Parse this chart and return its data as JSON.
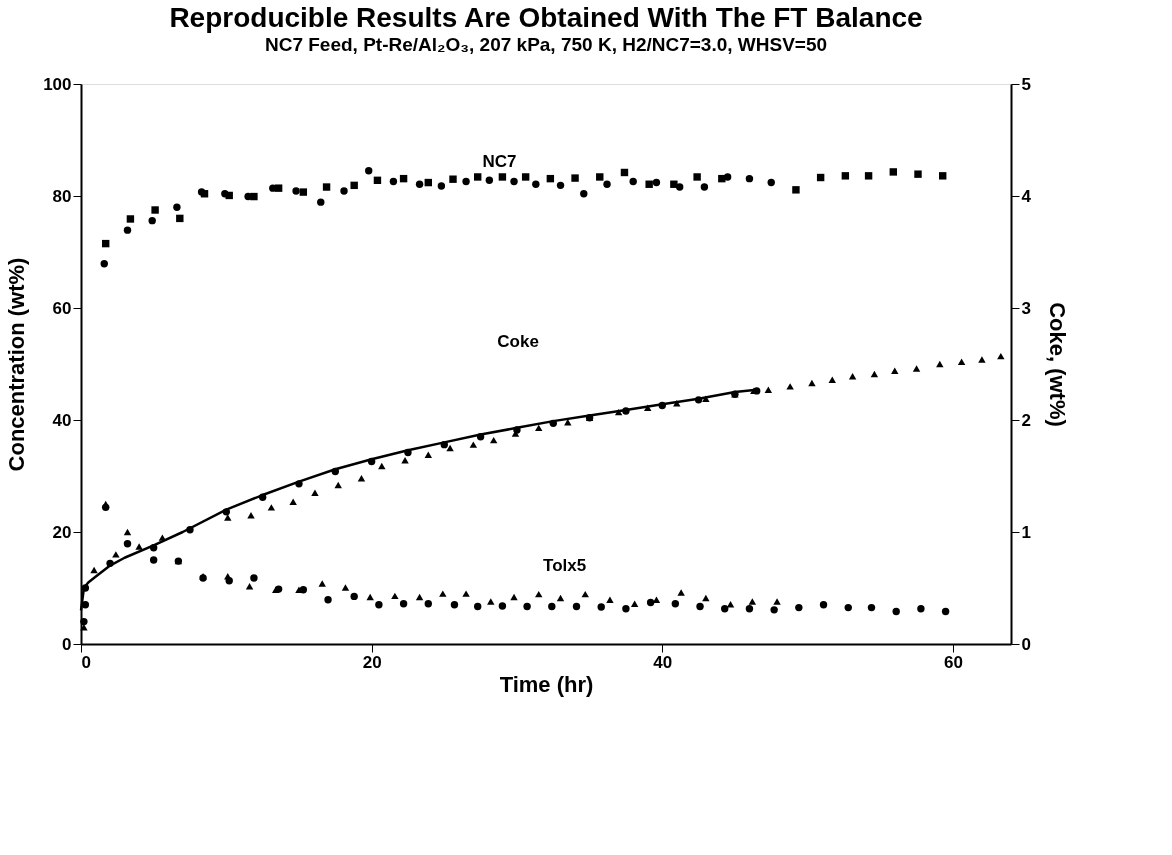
{
  "chart_data": {
    "type": "scatter",
    "title": "Reproducible Results Are Obtained With The FT Balance",
    "subtitle": "NC7 Feed, Pt-Re/Al₂O₃, 207 kPa, 750 K, H2/NC7=3.0, WHSV=50",
    "xlabel": "Time (hr)",
    "ylabel": "Concentration (wt%)",
    "y2label": "Coke, (wt%)",
    "xlim": [
      0,
      64
    ],
    "xticks": [
      0,
      20,
      40,
      60
    ],
    "ylim": [
      0,
      100
    ],
    "yticks": [
      0,
      20,
      40,
      60,
      80,
      100
    ],
    "y2lim": [
      0,
      5
    ],
    "y2ticks": [
      {
        "value": 0,
        "label": "0"
      },
      {
        "value": 1,
        "label": "1"
      },
      {
        "value": 2,
        "label": "2"
      },
      {
        "value": 3,
        "label": "3"
      },
      {
        "value": 4,
        "label": "4"
      },
      {
        "value": 5,
        "label": "5"
      }
    ],
    "grid": false,
    "annotations": [
      "NC7",
      "Coke",
      "Tolx5"
    ],
    "series": [
      {
        "marker": "square",
        "color": "#000000",
        "x": [
          1.7,
          3.4,
          5.1,
          6.8,
          8.5,
          10.2,
          11.9,
          13.6,
          15.3,
          16.9,
          18.8,
          20.4,
          22.2,
          23.9,
          25.6,
          27.3,
          29.0,
          30.6,
          32.3,
          34.0,
          35.7,
          37.4,
          39.1,
          40.8,
          42.4,
          44.1,
          49.2,
          50.9,
          52.6,
          54.2,
          55.9,
          57.6,
          59.3
        ],
        "values": [
          71.5,
          75.9,
          77.5,
          76.0,
          80.4,
          80.1,
          79.9,
          81.4,
          80.7,
          81.6,
          81.9,
          82.8,
          83.1,
          82.4,
          83.0,
          83.4,
          83.4,
          83.4,
          83.1,
          83.2,
          83.4,
          84.2,
          82.1,
          82.1,
          83.4,
          83.1,
          81.1,
          83.3,
          83.6,
          83.6,
          84.3,
          83.9,
          83.6
        ]
      },
      {
        "marker": "circle",
        "color": "#000000",
        "x": [
          1.6,
          3.2,
          4.9,
          6.6,
          8.3,
          9.9,
          11.5,
          13.2,
          14.8,
          16.5,
          18.1,
          19.8,
          21.5,
          23.3,
          24.8,
          26.5,
          28.1,
          29.8,
          31.3,
          33.0,
          34.6,
          36.2,
          38.0,
          39.6,
          41.2,
          42.9,
          44.5,
          46.0,
          47.5
        ],
        "values": [
          67.9,
          73.9,
          75.6,
          78.0,
          80.7,
          80.4,
          79.9,
          81.4,
          80.9,
          78.9,
          80.9,
          84.5,
          82.6,
          82.1,
          81.8,
          82.6,
          82.8,
          82.6,
          82.1,
          81.9,
          80.4,
          82.1,
          82.6,
          82.4,
          81.6,
          81.6,
          83.4,
          83.1,
          82.4
        ]
      },
      {
        "marker": "circle",
        "color": "#000000",
        "x": [
          0.2,
          0.3,
          1.7,
          3.2,
          5.0,
          6.7,
          8.4,
          10.2,
          11.9,
          13.6,
          15.3,
          17.0,
          18.8,
          20.5,
          22.2,
          23.9,
          25.7,
          27.3,
          29.0,
          30.7,
          32.4,
          34.1,
          35.8,
          37.5,
          39.2,
          40.9,
          42.6,
          44.3,
          46.0,
          47.7,
          49.4,
          51.1,
          52.8,
          54.4,
          56.1,
          57.8,
          59.5
        ],
        "values": [
          4.0,
          7.0,
          24.4,
          17.9,
          15.0,
          14.8,
          11.8,
          11.3,
          11.8,
          9.8,
          9.7,
          7.9,
          8.5,
          7.0,
          7.2,
          7.2,
          7.0,
          6.7,
          6.8,
          6.7,
          6.7,
          6.7,
          6.6,
          6.3,
          7.4,
          7.2,
          6.7,
          6.3,
          6.3,
          6.1,
          6.5,
          7.0,
          6.5,
          6.5,
          5.8,
          6.3,
          5.8
        ]
      },
      {
        "marker": "triangle",
        "color": "#000000",
        "x": [
          1.7,
          3.2,
          6.7,
          8.4,
          10.1,
          11.6,
          13.4,
          15.0,
          16.6,
          18.2,
          19.9,
          21.6,
          23.3,
          24.9,
          26.5,
          28.2,
          29.8,
          31.5,
          33.0,
          34.7,
          36.4,
          38.1,
          39.6,
          41.3,
          43.0,
          44.7,
          46.2,
          47.9
        ],
        "values": [
          25.0,
          20.0,
          14.8,
          12.1,
          12.1,
          10.3,
          9.7,
          9.7,
          10.8,
          10.1,
          8.4,
          8.6,
          8.4,
          9.0,
          9.0,
          7.6,
          8.4,
          8.9,
          8.2,
          8.9,
          7.9,
          7.2,
          7.9,
          9.2,
          8.2,
          7.1,
          7.6,
          7.6
        ]
      },
      {
        "type": "line",
        "axis": "y2",
        "color": "#000000",
        "x": [
          0,
          0.2,
          0.5,
          1,
          2,
          3,
          5,
          7,
          10,
          12.5,
          15,
          17.5,
          20,
          22.5,
          25,
          27.5,
          30,
          32.5,
          35,
          37.5,
          40,
          42.5,
          45,
          46.5
        ],
        "values": [
          0.3,
          0.5,
          0.55,
          0.6,
          0.7,
          0.77,
          0.88,
          1.0,
          1.2,
          1.33,
          1.45,
          1.56,
          1.65,
          1.73,
          1.8,
          1.87,
          1.93,
          1.99,
          2.04,
          2.09,
          2.14,
          2.19,
          2.25,
          2.27
        ]
      },
      {
        "axis": "y2",
        "marker": "circle",
        "color": "#000000",
        "x": [
          0.3,
          2,
          5,
          7.5,
          10,
          12.5,
          15,
          17.5,
          20,
          22.5,
          25,
          27.5,
          30,
          32.5,
          35,
          37.5,
          40,
          42.5,
          45,
          46.5
        ],
        "values": [
          0.5,
          0.72,
          0.86,
          1.02,
          1.18,
          1.31,
          1.43,
          1.54,
          1.63,
          1.71,
          1.78,
          1.85,
          1.91,
          1.97,
          2.02,
          2.08,
          2.13,
          2.18,
          2.23,
          2.26
        ]
      },
      {
        "axis": "y2",
        "marker": "triangle",
        "color": "#000000",
        "x": [
          0.2,
          0.9,
          2.4,
          4.0,
          5.6,
          10.1,
          11.7,
          13.1,
          14.6,
          16.1,
          17.7,
          19.3,
          20.7,
          22.3,
          23.9,
          25.4,
          27.0,
          28.4,
          29.9,
          31.5,
          33.5,
          35,
          37,
          39,
          41,
          43,
          45,
          46.3,
          47.3,
          48.8,
          50.3,
          51.7,
          53.1,
          54.6,
          56.0,
          57.5,
          59.1,
          60.6,
          62.0,
          63.3
        ],
        "values": [
          0.15,
          0.66,
          0.8,
          0.87,
          0.95,
          1.13,
          1.15,
          1.22,
          1.27,
          1.35,
          1.42,
          1.48,
          1.59,
          1.64,
          1.69,
          1.75,
          1.78,
          1.82,
          1.88,
          1.93,
          1.98,
          2.02,
          2.07,
          2.11,
          2.15,
          2.19,
          2.23,
          2.26,
          2.27,
          2.3,
          2.33,
          2.36,
          2.39,
          2.41,
          2.44,
          2.46,
          2.5,
          2.52,
          2.54,
          2.57
        ]
      }
    ]
  }
}
